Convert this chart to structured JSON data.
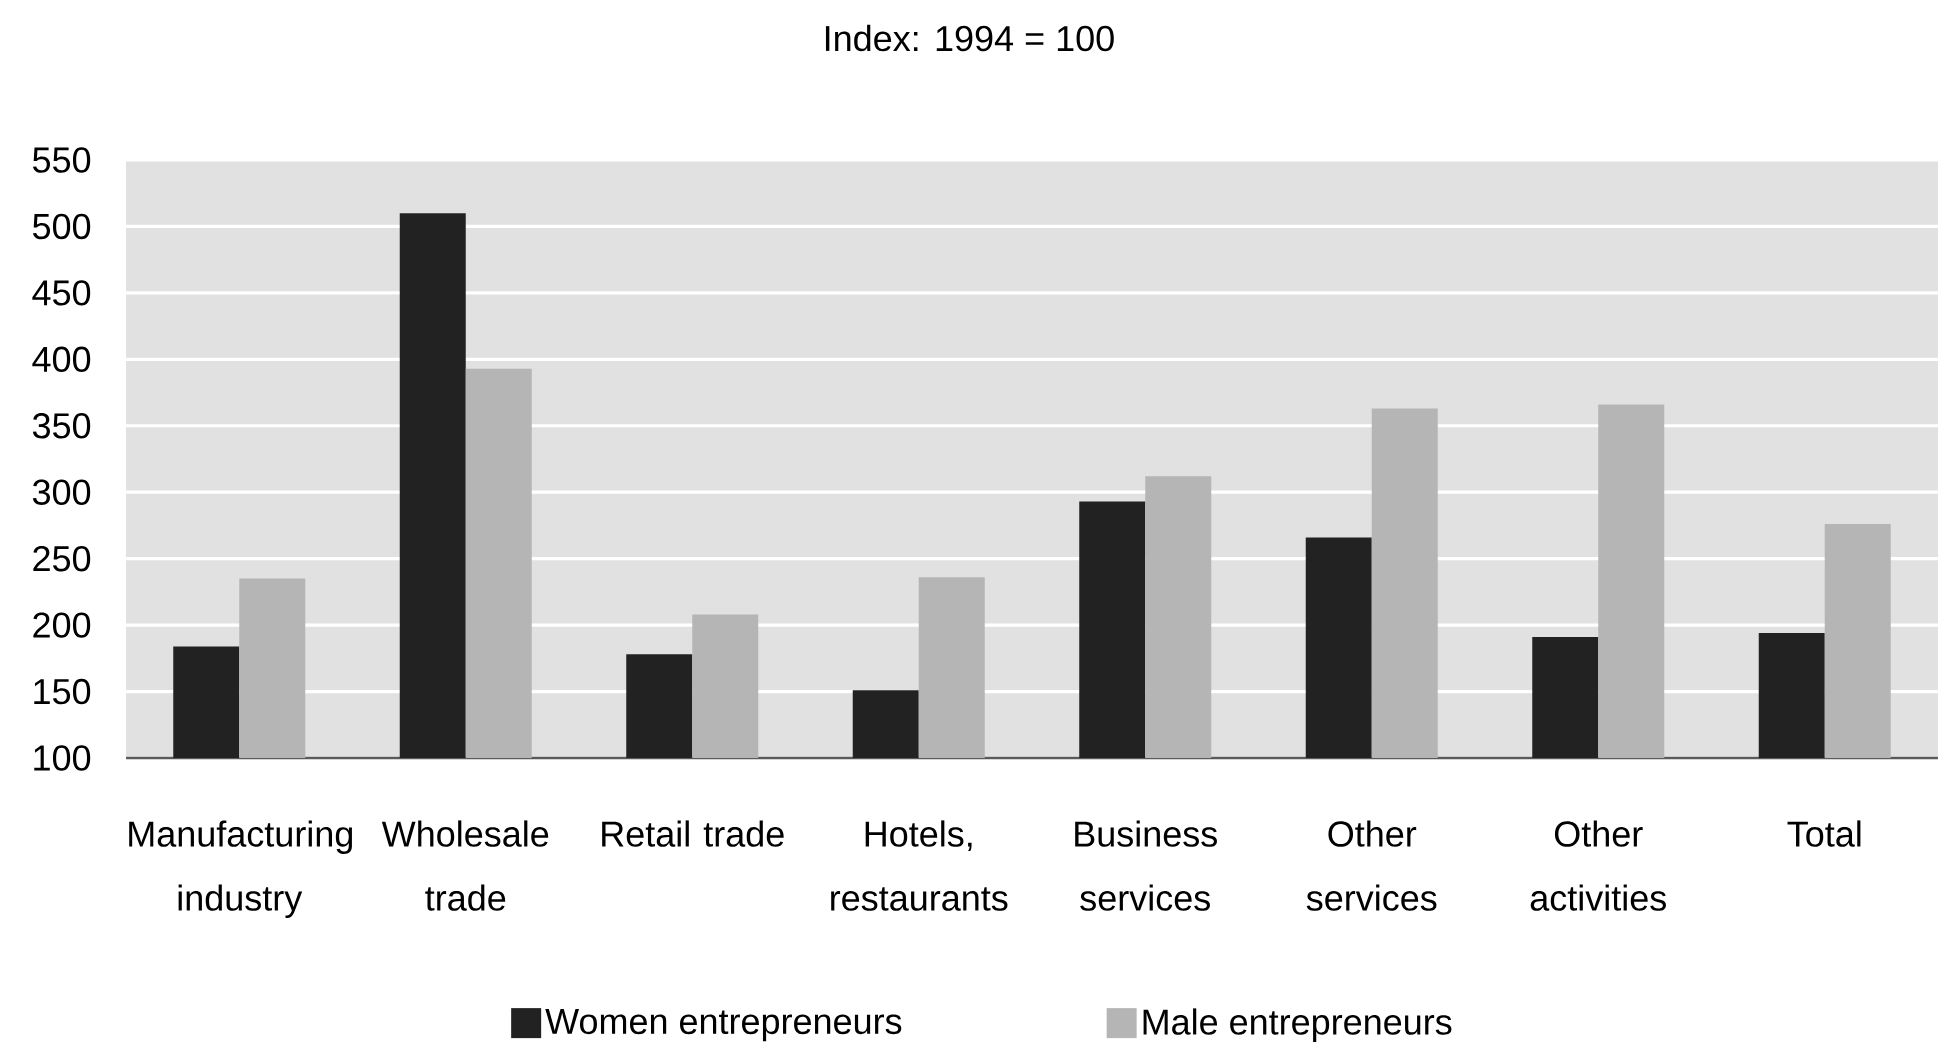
{
  "chart_data": {
    "type": "bar",
    "title": "Index: 1994 = 100",
    "categories": [
      "Manufacturing industry",
      "Wholesale trade",
      "Retail trade",
      "Hotels, restaurants",
      "Business services",
      "Other services",
      "Other activities",
      "Total"
    ],
    "series": [
      {
        "name": "Women entrepreneurs",
        "color": "#222222",
        "values": [
          184,
          510,
          178,
          151,
          293,
          266,
          191,
          194
        ]
      },
      {
        "name": "Male entrepreneurs",
        "color": "#b5b5b5",
        "values": [
          235,
          393,
          208,
          236,
          312,
          363,
          366,
          276
        ]
      }
    ],
    "ylim": [
      100,
      550
    ],
    "yticks": [
      100,
      150,
      200,
      250,
      300,
      350,
      400,
      450,
      500,
      550
    ],
    "grid": "y",
    "legend": "bottom"
  }
}
